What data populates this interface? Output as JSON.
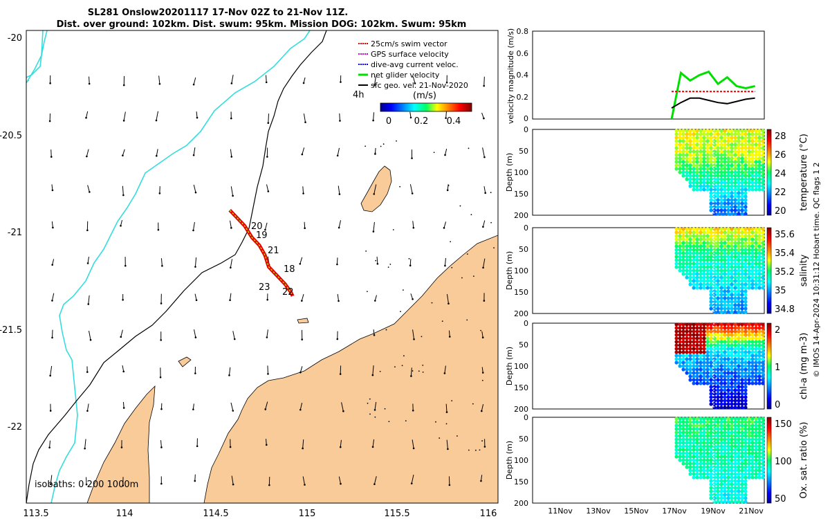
{
  "title": {
    "line1": "SL281 Onslow20201117 17-Nov 02Z to 21-Nov 11Z.",
    "line2": "Dist. over ground: 102km. Dist. swum: 95km. Mission DOG: 102km. Swum: 95km"
  },
  "map": {
    "xticks": [
      "113.5",
      "114",
      "114.5",
      "115",
      "115.5",
      "116"
    ],
    "yticks": [
      "-20",
      "-20.5",
      "-21",
      "-21.5",
      "-22"
    ],
    "legend": [
      {
        "label": "25cm/s swim vector",
        "color": "#e00000"
      },
      {
        "label": "GPS surface velocity",
        "color": "#cc00cc"
      },
      {
        "label": "dive-avg current veloc.",
        "color": "#0000ff"
      },
      {
        "label": "net glider velocity",
        "color": "#00e000"
      },
      {
        "label": "sfc geo. vel. 21-Nov-2020",
        "color": "#000000"
      }
    ],
    "time_marker": "4h",
    "colorbar_title": "(m/s)",
    "colorbar_ticks": [
      "0",
      "0.2",
      "0.4"
    ],
    "day_labels": [
      "20",
      "19",
      "21",
      "18",
      "23",
      "22"
    ],
    "isobaths_label": "isobaths: 0   200  1000m",
    "land_color": "#f9cb99",
    "isobath_200_color": "#000000",
    "isobath_1000_color": "#33dddd"
  },
  "panels": {
    "velocity": {
      "ylabel": "velocity magnitude (m/s)",
      "yticks": [
        "0",
        "0.2",
        "0.4",
        "0.6",
        "0.8"
      ]
    },
    "temperature": {
      "ylabel": "Depth (m)",
      "cblabel": "temperature (°C)",
      "cbticks": [
        "28",
        "26",
        "24",
        "22",
        "20"
      ]
    },
    "salinity": {
      "ylabel": "Depth (m)",
      "cblabel": "salinity",
      "cbticks": [
        "35.6",
        "35.4",
        "35.2",
        "35",
        "34.8"
      ]
    },
    "chla": {
      "ylabel": "Depth (m)",
      "cblabel": "chl-a (mg m-3)",
      "cbticks": [
        "2",
        "1",
        "0"
      ]
    },
    "oxygen": {
      "ylabel": "Depth (m)",
      "cblabel": "Ox. sat. ratio (%)",
      "cbticks": [
        "150",
        "100",
        "50"
      ]
    },
    "depth_ticks": [
      "0",
      "50",
      "100",
      "150",
      "200"
    ],
    "xticks": [
      "11Nov",
      "13Nov",
      "15Nov",
      "17Nov",
      "19Nov",
      "21Nov"
    ]
  },
  "footer": "© IMOS 14-Apr-2024 10:31:12 Hobart time. QC flags 1  2",
  "chart_data": [
    {
      "type": "line",
      "title": "SL281 Onslow20201117 17-Nov 02Z to 21-Nov 11Z.",
      "xlabel": "",
      "ylabel": "",
      "xlim": [
        113.5,
        116.05
      ],
      "ylim": [
        -22.4,
        -19.98
      ],
      "series": [
        {
          "name": "glider track",
          "x": [
            114.6,
            114.68,
            114.72,
            114.76,
            114.79,
            114.81,
            114.84,
            114.87,
            114.9,
            114.93,
            114.94
          ],
          "y": [
            -20.9,
            -20.98,
            -21.04,
            -21.08,
            -21.13,
            -21.19,
            -21.22,
            -21.25,
            -21.28,
            -21.32,
            -21.34
          ]
        }
      ]
    },
    {
      "type": "line",
      "ylabel": "velocity magnitude (m/s)",
      "ylim": [
        0,
        0.8
      ],
      "x_days": [
        17.0,
        17.5,
        18.0,
        18.5,
        19.0,
        19.5,
        20.0,
        20.5,
        21.0,
        21.5
      ],
      "series": [
        {
          "name": "net glider velocity",
          "color": "#00e000",
          "values": [
            0.0,
            0.42,
            0.35,
            0.4,
            0.43,
            0.32,
            0.38,
            0.3,
            0.28,
            0.3
          ]
        },
        {
          "name": "25cm/s swim vector",
          "color": "#e00000",
          "values": [
            0.25,
            0.25,
            0.25,
            0.25,
            0.25,
            0.25,
            0.25,
            0.25,
            0.25,
            0.25
          ]
        },
        {
          "name": "sfc geo. vel. 21-Nov-2020",
          "color": "#000000",
          "values": [
            0.1,
            0.15,
            0.19,
            0.19,
            0.17,
            0.15,
            0.14,
            0.16,
            0.18,
            0.19
          ]
        }
      ]
    }
  ]
}
